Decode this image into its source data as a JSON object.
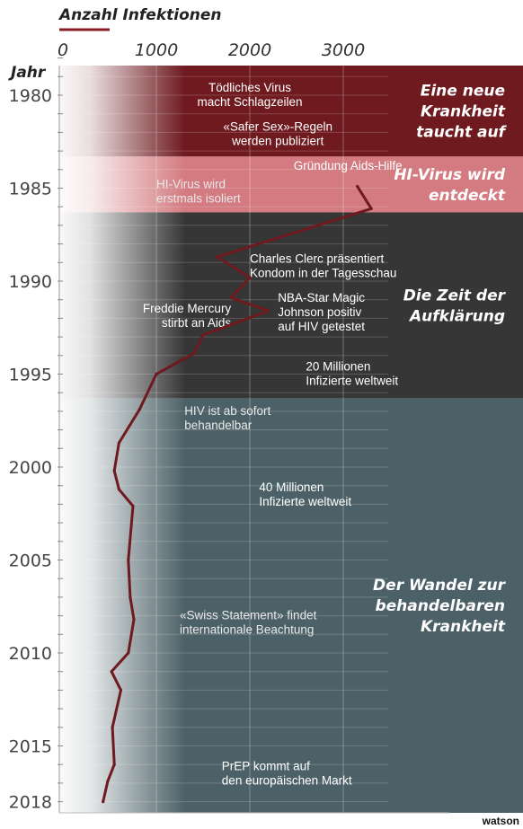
{
  "chart_data": {
    "type": "line",
    "title": "Anzahl Infektionen",
    "ylabel": "Jahr",
    "xlim": [
      0,
      3500
    ],
    "ylim": [
      1977,
      2018.5
    ],
    "xticks": [
      0,
      1000,
      2000,
      3000
    ],
    "yticks": [
      1980,
      1985,
      1990,
      1995,
      2000,
      2005,
      2010,
      2015,
      2018
    ],
    "grid": true,
    "series": [
      {
        "x": [
          3150,
          3300,
          1650,
          2000,
          1800,
          2200,
          1500,
          1400,
          1000,
          820,
          600,
          550,
          600,
          750,
          700,
          720,
          760,
          700,
          520,
          620,
          530,
          550,
          480,
          430
        ],
        "y": [
          1984.9,
          1986.1,
          1988.7,
          1989.8,
          1990.9,
          1991.6,
          1992.9,
          1993.9,
          1995.0,
          1996.9,
          1998.7,
          2000.2,
          2001.2,
          2002.1,
          2005.0,
          2007.0,
          2008.2,
          2010.0,
          2011.0,
          2012.0,
          2014.0,
          2016.0,
          2016.9,
          2018.0
        ]
      }
    ],
    "eras": [
      {
        "label": "Eine neue Krankheit taucht auf",
        "lines": [
          "Eine neue",
          "Krankheit",
          "taucht auf"
        ],
        "from": 1977,
        "to": 1983.3,
        "color": "#6e1a1f"
      },
      {
        "label": "HI-Virus wird entdeckt",
        "lines": [
          "HI-Virus wird",
          "entdeckt"
        ],
        "from": 1983.3,
        "to": 1986.3,
        "color": "#d37b80"
      },
      {
        "label": "Die Zeit der Aufklärung",
        "lines": [
          "Die Zeit der",
          "Aufklärung"
        ],
        "from": 1986.3,
        "to": 1996.3,
        "color": "#363636"
      },
      {
        "label": "Der Wandel zur behandelbaren Krankheit",
        "lines": [
          "Der Wandel zur",
          "behandelbaren",
          "Krankheit"
        ],
        "from": 1996.3,
        "to": 2018.6,
        "color": "#4c6167"
      }
    ],
    "annotations": [
      {
        "lines": [
          "Tödliches Virus",
          "macht Schlagzeilen"
        ],
        "year": 1979.8,
        "value": 2000,
        "anchor": "middle"
      },
      {
        "lines": [
          "«Safer Sex»-Regeln",
          "werden publiziert"
        ],
        "year": 1981.9,
        "value": 2300,
        "anchor": "middle"
      },
      {
        "lines": [
          "Gründung Aids-Hilfe"
        ],
        "year": 1984.0,
        "value": 3050,
        "anchor": "middle"
      },
      {
        "lines": [
          "HI-Virus wird",
          "erstmals isoliert"
        ],
        "year": 1985.0,
        "value": 1000,
        "anchor": "start"
      },
      {
        "lines": [
          "Charles Clerc präsentiert",
          "Kondom in der Tagesschau"
        ],
        "year": 1989.0,
        "value": 2000,
        "anchor": "start"
      },
      {
        "lines": [
          "NBA-Star Magic",
          "Johnson positiv",
          "auf HIV getestet"
        ],
        "year": 1991.1,
        "value": 2300,
        "anchor": "start"
      },
      {
        "lines": [
          "Freddie Mercury",
          "stirbt an Aids"
        ],
        "year": 1991.7,
        "value": 1800,
        "anchor": "end"
      },
      {
        "lines": [
          "20 Millionen",
          "Infizierte weltweit"
        ],
        "year": 1994.8,
        "value": 2600,
        "anchor": "start"
      },
      {
        "lines": [
          "HIV ist ab sofort",
          "behandelbar"
        ],
        "year": 1997.2,
        "value": 1300,
        "anchor": "start"
      },
      {
        "lines": [
          "40 Millionen",
          "Infizierte weltweit"
        ],
        "year": 2001.3,
        "value": 2100,
        "anchor": "start"
      },
      {
        "lines": [
          "«Swiss Statement» findet",
          "internationale Beachtung"
        ],
        "year": 2008.2,
        "value": 1250,
        "anchor": "start"
      },
      {
        "lines": [
          "PrEP kommt auf",
          "den europäischen Markt"
        ],
        "year": 2016.3,
        "value": 1700,
        "anchor": "start"
      }
    ]
  },
  "brand": {
    "logo_text": "watson",
    "line_color": "#6e1a1f",
    "accent_color": "#8a1c24"
  }
}
